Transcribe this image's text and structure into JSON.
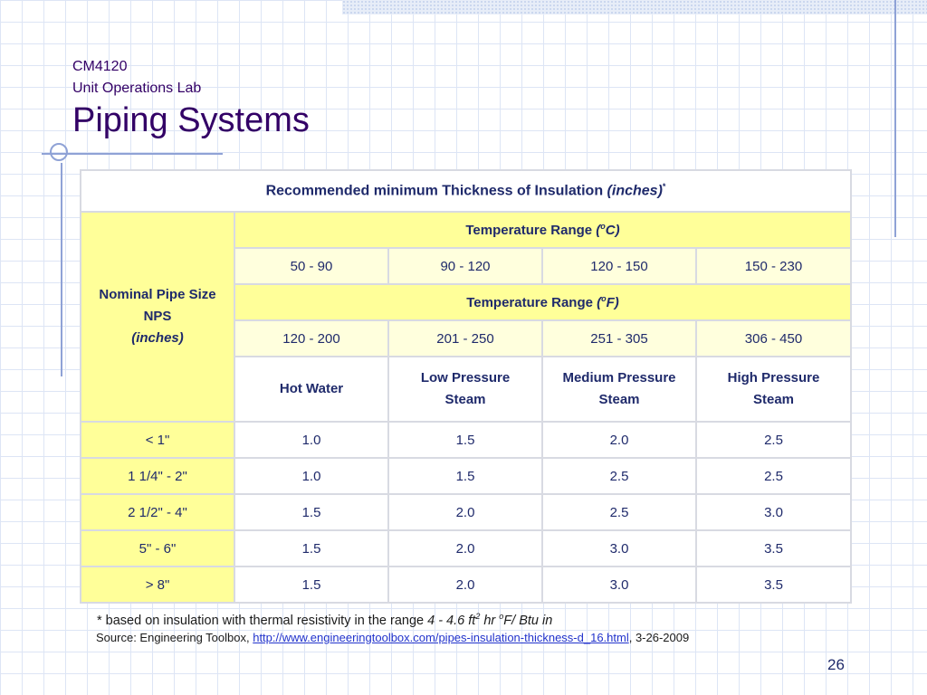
{
  "slide": {
    "course": "CM4120",
    "lab": "Unit Operations Lab",
    "title": "Piping Systems",
    "page_number": "26"
  },
  "table": {
    "heading_main": "Recommended minimum Thickness of Insulation",
    "heading_unit": "(inches)",
    "heading_mark": "*",
    "row_header": {
      "line1": "Nominal Pipe Size",
      "line2": "NPS",
      "line3": "(inches)"
    },
    "temp_c": {
      "label": "Temperature Range",
      "unit_o": "o",
      "unit_letter": "C",
      "ranges": [
        "50 - 90",
        "90 - 120",
        "120 - 150",
        "150 - 230"
      ]
    },
    "temp_f": {
      "label": "Temperature Range",
      "unit_o": "o",
      "unit_letter": "F",
      "ranges": [
        "120 - 200",
        "201 - 250",
        "251 - 305",
        "306 - 450"
      ]
    },
    "services": [
      {
        "line1": "Hot Water",
        "line2": ""
      },
      {
        "line1": "Low Pressure",
        "line2": "Steam"
      },
      {
        "line1": "Medium Pressure",
        "line2": "Steam"
      },
      {
        "line1": "High Pressure",
        "line2": "Steam"
      }
    ],
    "rows": [
      {
        "size": "< 1\"",
        "values": [
          "1.0",
          "1.5",
          "2.0",
          "2.5"
        ]
      },
      {
        "size": "1 1/4\" - 2\"",
        "values": [
          "1.0",
          "1.5",
          "2.5",
          "2.5"
        ]
      },
      {
        "size": "2 1/2\" - 4\"",
        "values": [
          "1.5",
          "2.0",
          "2.5",
          "3.0"
        ]
      },
      {
        "size": "5\" - 6\"",
        "values": [
          "1.5",
          "2.0",
          "3.0",
          "3.5"
        ]
      },
      {
        "size": "> 8\"",
        "values": [
          "1.5",
          "2.0",
          "3.0",
          "3.5"
        ]
      }
    ]
  },
  "footnote": {
    "text": "* based on insulation with thermal resistivity in the range",
    "range": "4 - 4.6 ft",
    "sup2": "2",
    "hr": " hr ",
    "sup_o": "o",
    "rest": "F/ Btu in"
  },
  "source": {
    "prefix": "Source: Engineering Toolbox, ",
    "link": "http://www.engineeringtoolbox.com/pipes-insulation-thickness-d_16.html",
    "date": ", 3-26-2009"
  }
}
